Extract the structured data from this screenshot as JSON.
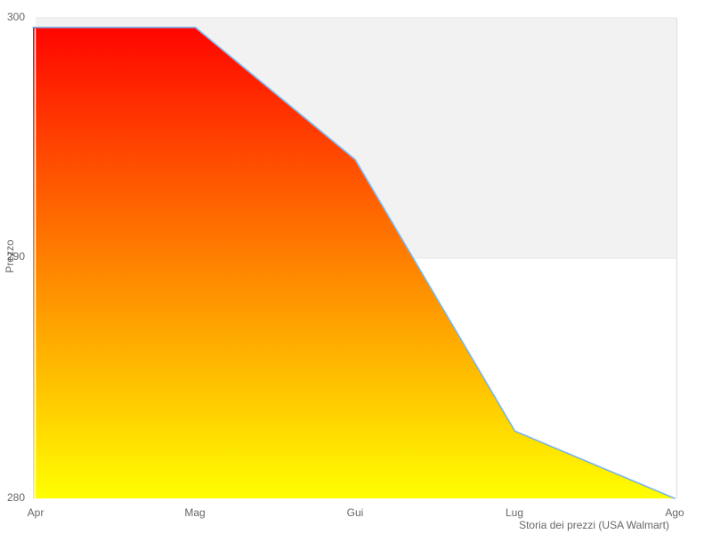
{
  "chart_data": {
    "type": "area",
    "categories": [
      "Apr",
      "Mag",
      "Gui",
      "Lug",
      "Ago"
    ],
    "values": [
      299.6,
      299.6,
      294.1,
      282.8,
      280.0
    ],
    "title": "",
    "xlabel": "Storia dei prezzi (USA Walmart)",
    "ylabel": "Prezzo",
    "ylim": [
      280,
      300
    ],
    "y_tick_labels": [
      "300",
      "290",
      "280"
    ],
    "y_tick_values": [
      300,
      290,
      280
    ],
    "grid": "alternating horizontal bands, band 290-300 shaded",
    "legend_position": "none",
    "colors": {
      "line": "#7cb5ec",
      "area_gradient_top": "#ff0000",
      "area_gradient_bottom": "#ffff00",
      "band_fill": "#f2f2f2",
      "plot_border": "#e6e6e6",
      "axis_text": "#666666",
      "axis_gap_line": "#ffffff"
    }
  }
}
